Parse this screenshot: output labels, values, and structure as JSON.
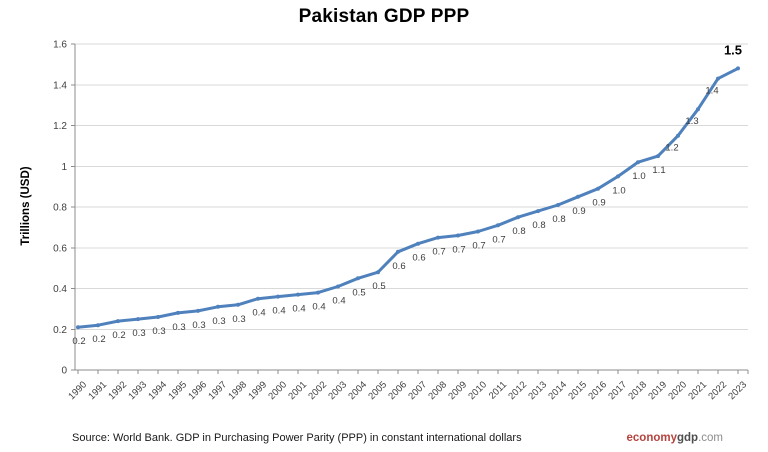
{
  "header": {
    "title": "Pakistan GDP PPP"
  },
  "y_axis": {
    "title": "Trillions (USD)"
  },
  "footer": {
    "source": "Source: World Bank.  GDP in  Purchasing Power Parity (PPP)  in constant international dollars",
    "brand": {
      "part1": "economy",
      "part2": "gdp",
      "part3": ".com"
    }
  },
  "colors": {
    "line": "#4f81bd",
    "grid": "#d9d9d9",
    "axis": "#8c8c8c",
    "tick_label": "#404040",
    "data_label": "#3d3d3d",
    "emphasis_label": "#000000",
    "brand_red": "#b5443f",
    "brand_dark": "#4d4d4d",
    "brand_gray": "#8c8c8c"
  },
  "chart_data": {
    "type": "line",
    "title": "Pakistan GDP PPP",
    "xlabel": "",
    "ylabel": "Trillions (USD)",
    "x": [
      1990,
      1991,
      1992,
      1993,
      1994,
      1995,
      1996,
      1997,
      1998,
      1999,
      2000,
      2001,
      2002,
      2003,
      2004,
      2005,
      2006,
      2007,
      2008,
      2009,
      2010,
      2011,
      2012,
      2013,
      2014,
      2015,
      2016,
      2017,
      2018,
      2019,
      2020,
      2021,
      2022,
      2023
    ],
    "values": [
      0.21,
      0.22,
      0.24,
      0.25,
      0.26,
      0.28,
      0.29,
      0.31,
      0.32,
      0.35,
      0.36,
      0.37,
      0.38,
      0.41,
      0.45,
      0.48,
      0.58,
      0.62,
      0.65,
      0.66,
      0.68,
      0.71,
      0.75,
      0.78,
      0.81,
      0.85,
      0.89,
      0.95,
      1.02,
      1.05,
      1.15,
      1.28,
      1.43,
      1.48
    ],
    "point_labels": [
      "0.2",
      "0.2",
      "0.2",
      "0.3",
      "0.3",
      "0.3",
      "0.3",
      "0.3",
      "0.3",
      "0.4",
      "0.4",
      "0.4",
      "0.4",
      "0.4",
      "0.5",
      "0.5",
      "0.6",
      "0.6",
      "0.7",
      "0.7",
      "0.7",
      "0.7",
      "0.8",
      "0.8",
      "0.8",
      "0.9",
      "0.9",
      "1.0",
      "1.0",
      "1.1",
      "1.2",
      "1.3",
      "1.4",
      "1.5"
    ],
    "emphasized_last_label": "1.5",
    "yticks": [
      "0",
      "0.2",
      "0.4",
      "0.6",
      "0.8",
      "1",
      "1.2",
      "1.4",
      "1.6"
    ],
    "ylim": [
      0,
      1.6
    ],
    "grid": true,
    "legend": false,
    "series_name": "Pakistan GDP PPP"
  }
}
